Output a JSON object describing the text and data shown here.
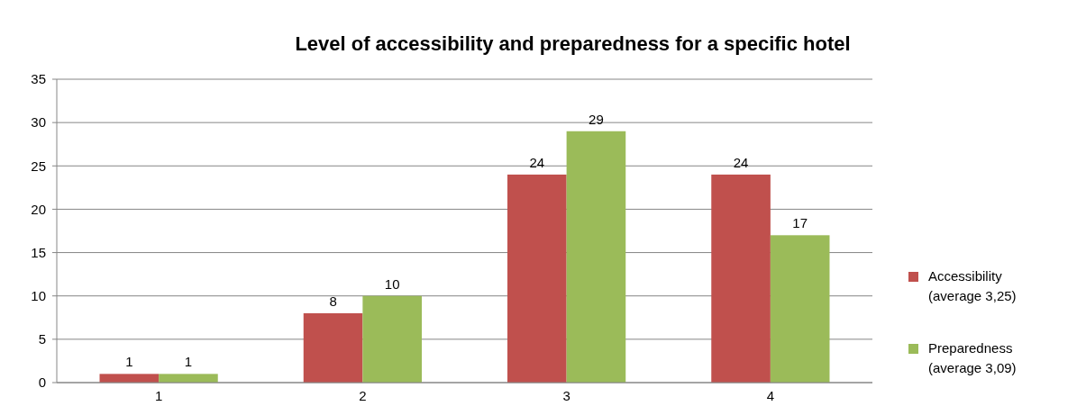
{
  "chart_data": {
    "type": "bar",
    "title": "Level of accessibility and preparedness  for a specific hotel",
    "categories": [
      "1",
      "2",
      "3",
      "4"
    ],
    "series": [
      {
        "name": "Accessibility (average 3,25)",
        "color": "#c0504d",
        "values": [
          1,
          8,
          24,
          24
        ]
      },
      {
        "name": "Preparedness (average 3,09)",
        "color": "#9bbb59",
        "values": [
          1,
          10,
          29,
          17
        ]
      }
    ],
    "ylim": [
      0,
      35
    ],
    "yticks": [
      0,
      5,
      10,
      15,
      20,
      25,
      30,
      35
    ],
    "grid": "y",
    "legend": "right",
    "data_labels": true
  }
}
